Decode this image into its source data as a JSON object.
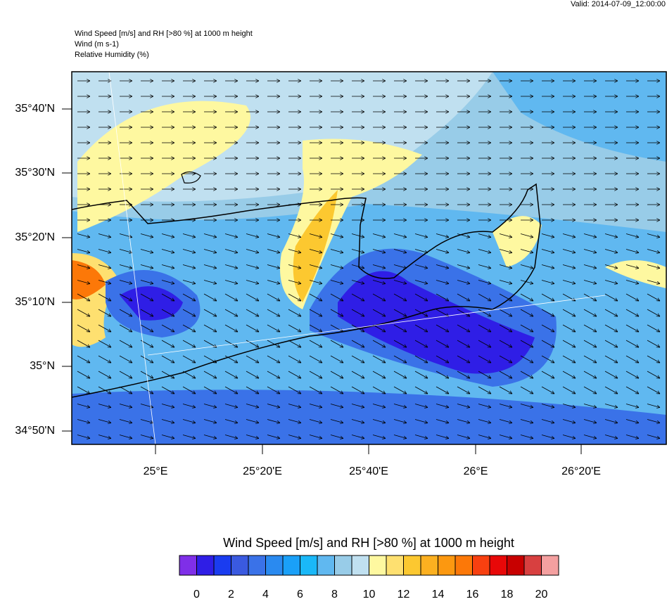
{
  "header": {
    "valid": "Valid: 2014-07-09_12:00:00",
    "lines": [
      "Wind Speed [m/s] and RH [>80 %] at 1000 m height",
      "Wind   (m s-1)",
      "Relative Humidity   (%)"
    ]
  },
  "map": {
    "lat_labels": [
      "35°40'N",
      "35°30'N",
      "35°20'N",
      "35°10'N",
      "35°N",
      "34°50'N"
    ],
    "lon_labels": [
      "25°E",
      "25°20'E",
      "25°40'E",
      "26°E",
      "26°20'E"
    ]
  },
  "colorbar": {
    "title": "Wind Speed [m/s] and RH [>80 %] at 1000 m height",
    "colors": [
      "#7f2fe8",
      "#2f1ee6",
      "#1a3cf0",
      "#3a5ae0",
      "#3a72e8",
      "#2a8af0",
      "#1aa0f8",
      "#1ab8f8",
      "#60b8f0",
      "#98cce8",
      "#c0e0f0",
      "#fef8a0",
      "#fee070",
      "#fcc830",
      "#fcb020",
      "#fc9810",
      "#fc7808",
      "#f84010",
      "#e80808",
      "#c80000",
      "#d84040",
      "#f4a0a0"
    ],
    "labels": [
      0,
      2,
      4,
      6,
      8,
      10,
      12,
      14,
      16,
      18,
      20
    ]
  }
}
